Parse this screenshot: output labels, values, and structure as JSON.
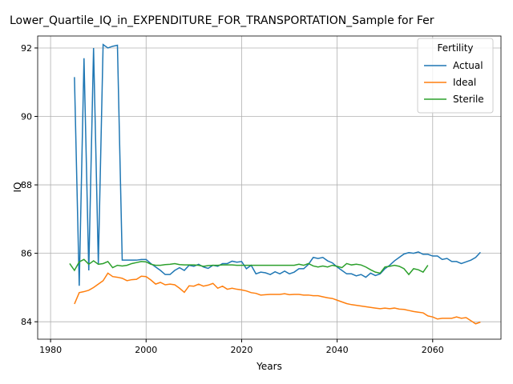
{
  "chart_data": {
    "type": "line",
    "title": "Lower_Quartile_IQ_in_EXPENDITURE_FOR_TRANSPORTATION_Sample for Fer",
    "xlabel": "Years",
    "ylabel": "IQ",
    "legend_title": "Fertility",
    "legend": "upper right",
    "grid": true,
    "xlim": [
      1977.3,
      2074.3
    ],
    "xticks": [
      1980,
      2000,
      2020,
      2040,
      2060
    ],
    "ylim": [
      83.49,
      92.35
    ],
    "yticks": [
      84,
      86,
      88,
      90,
      92
    ],
    "series": [
      {
        "name": "Actual",
        "color": "#1f77b4",
        "x": [
          1985,
          1986,
          1987,
          1988,
          1989,
          1990,
          1991,
          1992,
          1993,
          1994,
          1995,
          1996,
          1997,
          1998,
          1999,
          2000,
          2001,
          2002,
          2003,
          2004,
          2005,
          2006,
          2007,
          2008,
          2009,
          2010,
          2011,
          2012,
          2013,
          2014,
          2015,
          2016,
          2017,
          2018,
          2019,
          2020,
          2021,
          2022,
          2023,
          2024,
          2025,
          2026,
          2027,
          2028,
          2029,
          2030,
          2031,
          2032,
          2033,
          2034,
          2035,
          2036,
          2037,
          2038,
          2039,
          2040,
          2041,
          2042,
          2043,
          2044,
          2045,
          2046,
          2047,
          2048,
          2049,
          2050,
          2051,
          2052,
          2053,
          2054,
          2055,
          2056,
          2057,
          2058,
          2059,
          2060,
          2061,
          2062,
          2063,
          2064,
          2065,
          2066,
          2067,
          2068,
          2069,
          2070
        ],
        "values": [
          91.15,
          85.05,
          91.7,
          85.5,
          92.0,
          85.7,
          92.1,
          92.0,
          92.05,
          92.08,
          85.8,
          85.8,
          85.8,
          85.8,
          85.82,
          85.82,
          85.7,
          85.6,
          85.5,
          85.38,
          85.38,
          85.5,
          85.58,
          85.5,
          85.65,
          85.62,
          85.68,
          85.6,
          85.56,
          85.65,
          85.62,
          85.7,
          85.7,
          85.77,
          85.74,
          85.76,
          85.55,
          85.65,
          85.4,
          85.45,
          85.43,
          85.38,
          85.46,
          85.4,
          85.48,
          85.4,
          85.45,
          85.55,
          85.55,
          85.68,
          85.88,
          85.85,
          85.88,
          85.78,
          85.72,
          85.6,
          85.5,
          85.4,
          85.4,
          85.34,
          85.38,
          85.3,
          85.42,
          85.35,
          85.4,
          85.55,
          85.65,
          85.78,
          85.88,
          85.98,
          86.02,
          86.0,
          86.04,
          85.97,
          85.97,
          85.92,
          85.92,
          85.82,
          85.85,
          85.76,
          85.76,
          85.7,
          85.75,
          85.8,
          85.88,
          86.03
        ]
      },
      {
        "name": "Ideal",
        "color": "#ff7f0e",
        "x": [
          1985,
          1986,
          1987,
          1988,
          1989,
          1990,
          1991,
          1992,
          1993,
          1994,
          1995,
          1996,
          1997,
          1998,
          1999,
          2000,
          2001,
          2002,
          2003,
          2004,
          2005,
          2006,
          2007,
          2008,
          2009,
          2010,
          2011,
          2012,
          2013,
          2014,
          2015,
          2016,
          2017,
          2018,
          2019,
          2020,
          2021,
          2022,
          2023,
          2024,
          2025,
          2026,
          2027,
          2028,
          2029,
          2030,
          2031,
          2032,
          2033,
          2034,
          2035,
          2036,
          2037,
          2038,
          2039,
          2040,
          2041,
          2042,
          2043,
          2044,
          2045,
          2046,
          2047,
          2048,
          2049,
          2050,
          2051,
          2052,
          2053,
          2054,
          2055,
          2056,
          2057,
          2058,
          2059,
          2060,
          2061,
          2062,
          2063,
          2064,
          2065,
          2066,
          2067,
          2068,
          2069,
          2070
        ],
        "values": [
          84.52,
          84.85,
          84.88,
          84.92,
          85.0,
          85.1,
          85.2,
          85.42,
          85.32,
          85.3,
          85.27,
          85.2,
          85.23,
          85.24,
          85.33,
          85.32,
          85.22,
          85.1,
          85.15,
          85.08,
          85.1,
          85.08,
          84.98,
          84.86,
          85.05,
          85.04,
          85.1,
          85.04,
          85.07,
          85.12,
          84.98,
          85.04,
          84.95,
          84.98,
          84.95,
          84.93,
          84.9,
          84.85,
          84.83,
          84.78,
          84.79,
          84.8,
          84.8,
          84.8,
          84.82,
          84.79,
          84.8,
          84.8,
          84.78,
          84.78,
          84.76,
          84.76,
          84.73,
          84.7,
          84.68,
          84.63,
          84.58,
          84.53,
          84.5,
          84.48,
          84.46,
          84.44,
          84.42,
          84.4,
          84.38,
          84.4,
          84.38,
          84.4,
          84.37,
          84.36,
          84.33,
          84.3,
          84.28,
          84.26,
          84.17,
          84.14,
          84.08,
          84.1,
          84.1,
          84.1,
          84.14,
          84.1,
          84.12,
          84.03,
          83.94,
          83.99
        ]
      },
      {
        "name": "Sterile",
        "color": "#2ca02c",
        "x": [
          1984,
          1985,
          1986,
          1987,
          1988,
          1989,
          1990,
          1991,
          1992,
          1993,
          1994,
          1995,
          1996,
          1997,
          1998,
          1999,
          2000,
          2001,
          2002,
          2003,
          2004,
          2005,
          2006,
          2007,
          2008,
          2009,
          2010,
          2011,
          2012,
          2013,
          2014,
          2015,
          2016,
          2017,
          2018,
          2019,
          2020,
          2021,
          2022,
          2023,
          2024,
          2025,
          2026,
          2027,
          2028,
          2029,
          2030,
          2031,
          2032,
          2033,
          2034,
          2035,
          2036,
          2037,
          2038,
          2039,
          2040,
          2041,
          2042,
          2043,
          2044,
          2045,
          2046,
          2047,
          2048,
          2049,
          2050,
          2051,
          2052,
          2053,
          2054,
          2055,
          2056,
          2057,
          2058,
          2059
        ],
        "values": [
          85.7,
          85.5,
          85.75,
          85.82,
          85.68,
          85.78,
          85.68,
          85.7,
          85.76,
          85.58,
          85.65,
          85.63,
          85.65,
          85.7,
          85.73,
          85.76,
          85.75,
          85.68,
          85.65,
          85.65,
          85.67,
          85.68,
          85.7,
          85.67,
          85.66,
          85.66,
          85.66,
          85.65,
          85.62,
          85.64,
          85.65,
          85.65,
          85.66,
          85.66,
          85.66,
          85.65,
          85.65,
          85.65,
          85.65,
          85.65,
          85.65,
          85.65,
          85.65,
          85.65,
          85.65,
          85.65,
          85.65,
          85.65,
          85.68,
          85.65,
          85.7,
          85.63,
          85.6,
          85.63,
          85.6,
          85.65,
          85.62,
          85.58,
          85.7,
          85.66,
          85.68,
          85.66,
          85.6,
          85.52,
          85.45,
          85.42,
          85.6,
          85.62,
          85.65,
          85.62,
          85.55,
          85.38,
          85.55,
          85.52,
          85.45,
          85.65
        ]
      }
    ]
  }
}
